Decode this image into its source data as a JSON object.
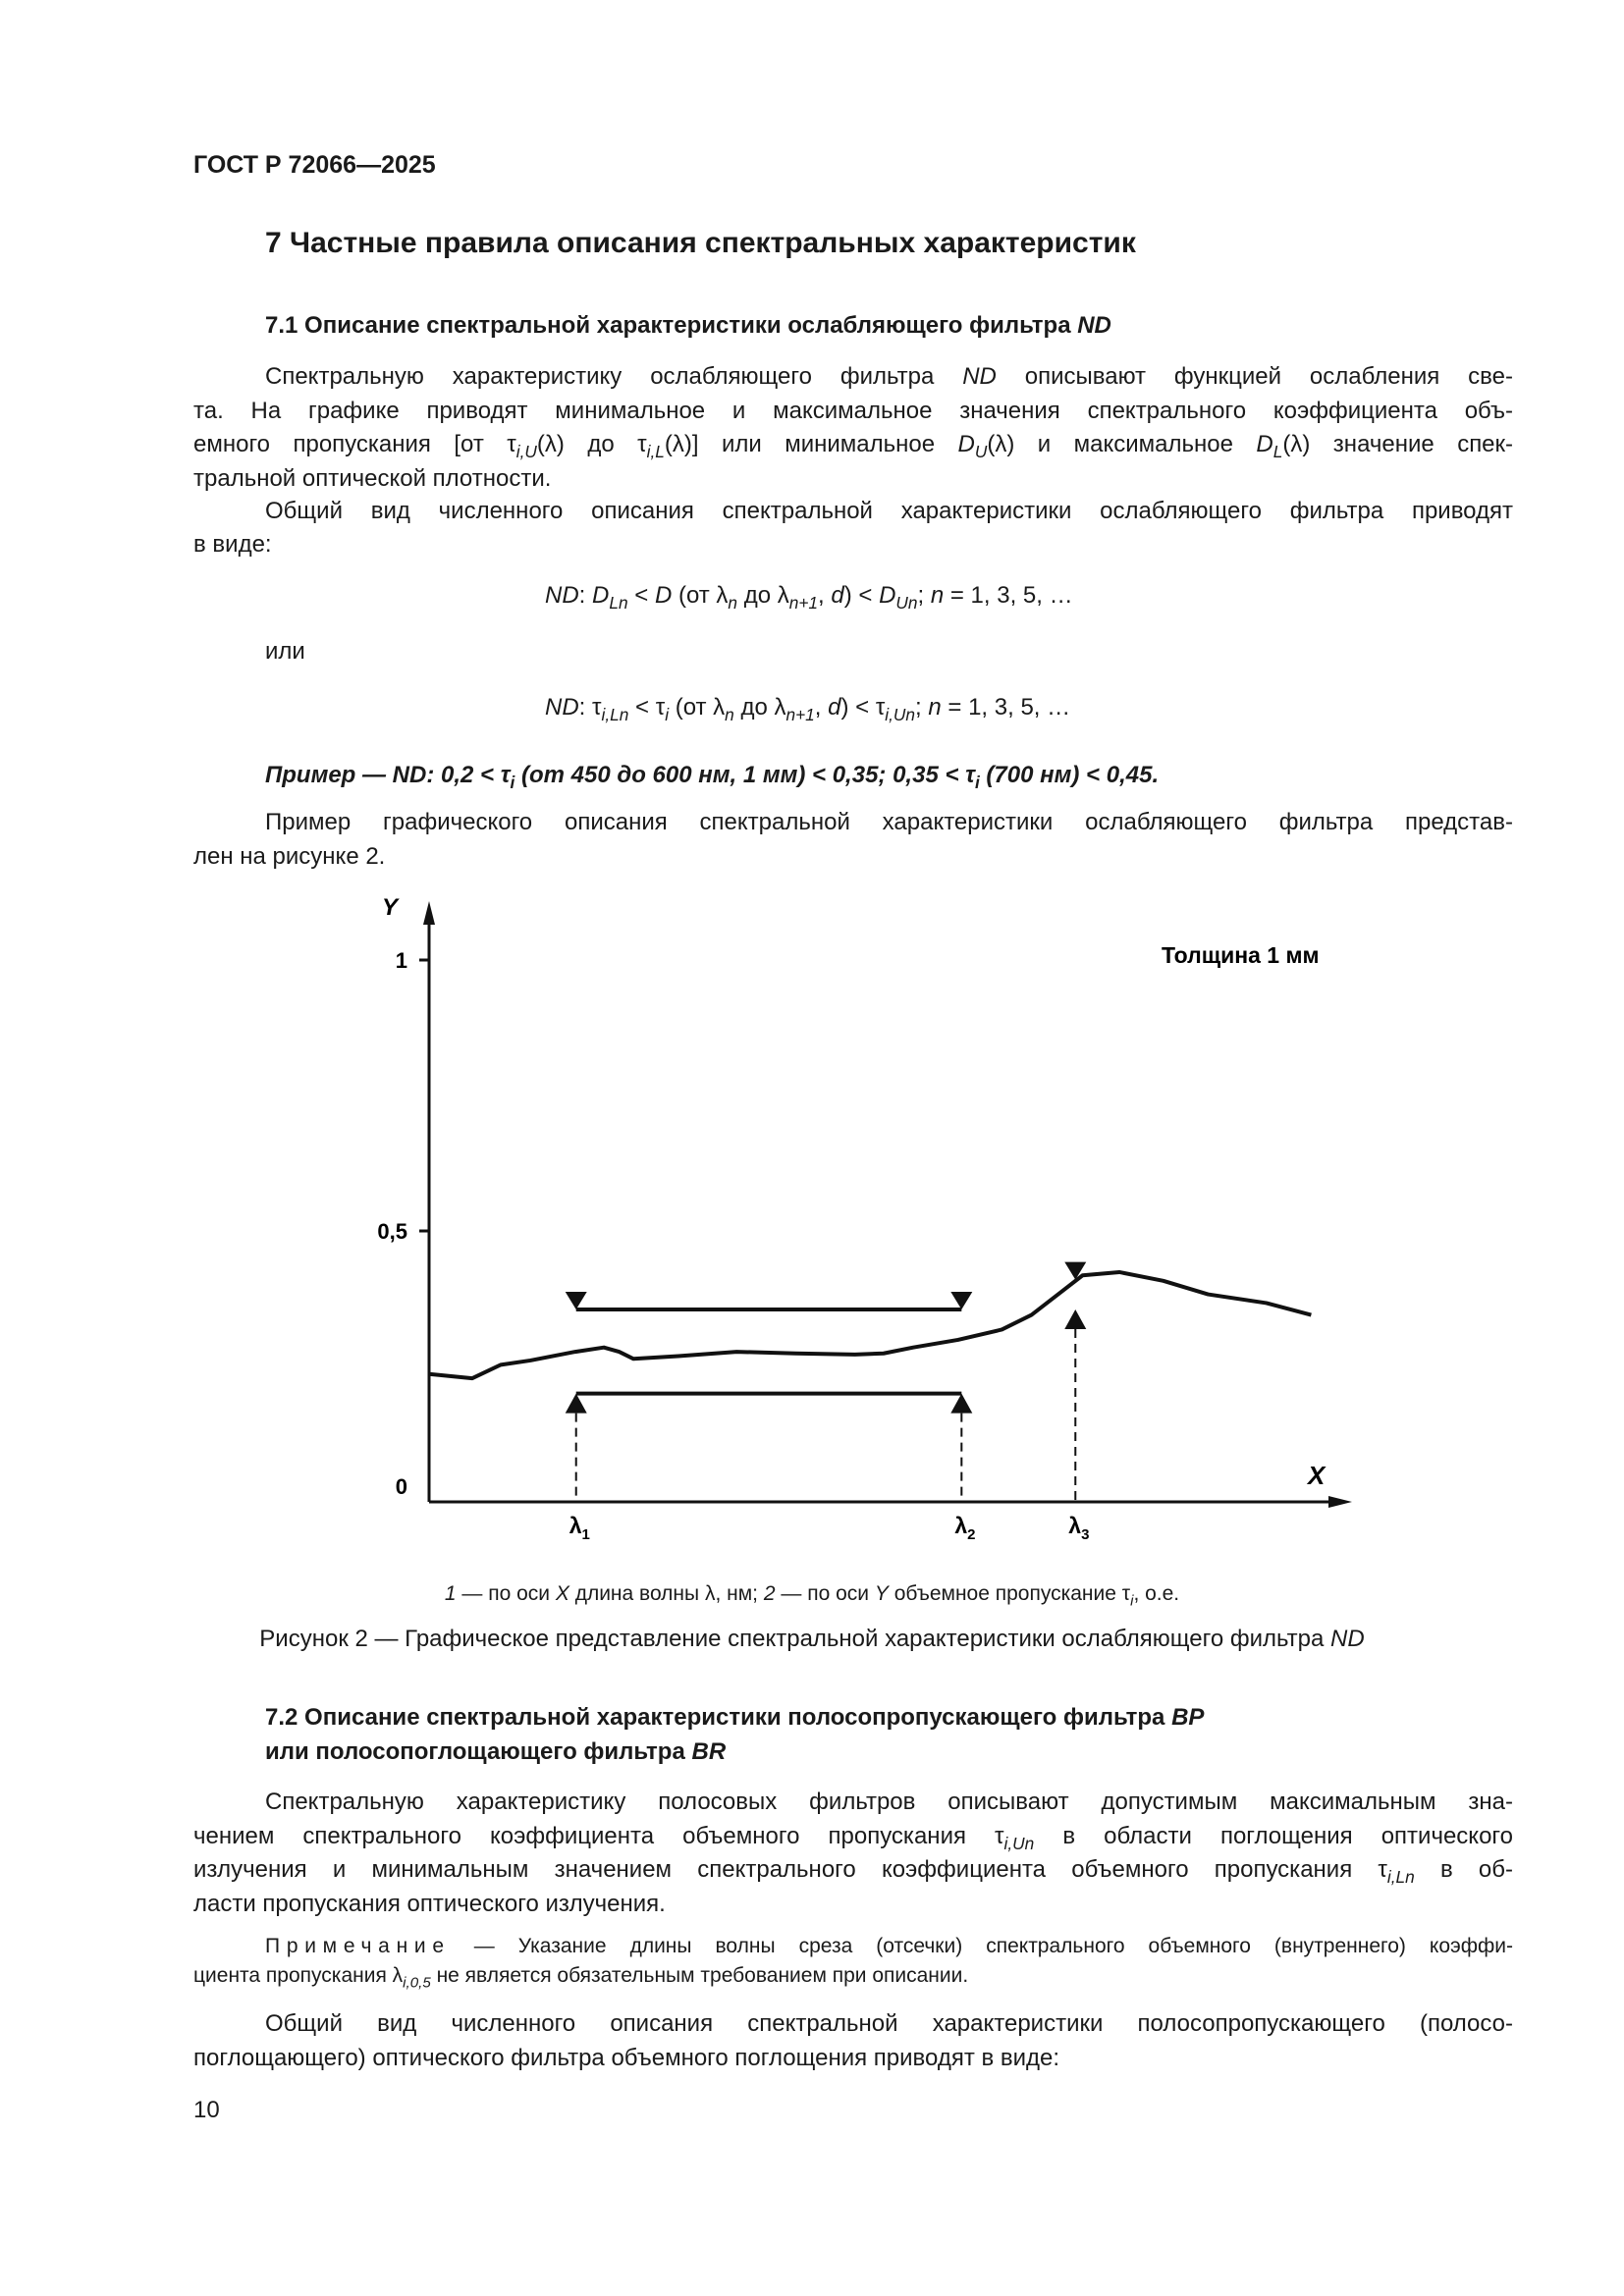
{
  "header": {
    "doc_id": "ГОСТ Р 72066—2025"
  },
  "section": {
    "title": "7 Частные правила описания спектральных характеристик"
  },
  "s71": {
    "heading": [
      [
        "7.1  Описание спектральной характеристики ослабляющего фильтра ",
        ""
      ],
      [
        "ND",
        "i"
      ]
    ],
    "p1": [
      [
        [
          "Спектральную характеристику ослабляющего фильтра ",
          ""
        ],
        [
          "ND",
          "i"
        ],
        [
          " описывают функцией ослабления све-",
          ""
        ]
      ],
      [
        [
          "та. На графике приводят минимальное и максимальное значения спектрального коэффициента объ-",
          ""
        ]
      ],
      [
        [
          "емного пропускания [от τ",
          ""
        ],
        [
          "i,U",
          "isub"
        ],
        [
          "(λ) до τ",
          ""
        ],
        [
          "i,L",
          "isub"
        ],
        [
          "(λ)] или минимальное ",
          ""
        ],
        [
          "D",
          "i"
        ],
        [
          "U",
          "isub"
        ],
        [
          "(λ) и максимальное ",
          ""
        ],
        [
          "D",
          "i"
        ],
        [
          "L",
          "isub"
        ],
        [
          "(λ) значение спек-",
          ""
        ]
      ],
      [
        [
          "тральной оптической плотности.",
          ""
        ]
      ]
    ],
    "p2": [
      [
        [
          "Общий вид численного описания спектральной характеристики ослабляющего фильтра приводят",
          ""
        ]
      ],
      [
        [
          "в виде:",
          ""
        ]
      ]
    ],
    "formula1": [
      [
        "ND",
        "i"
      ],
      [
        ": ",
        ""
      ],
      [
        "D",
        "i"
      ],
      [
        "Ln",
        "isub"
      ],
      [
        " < ",
        ""
      ],
      [
        "D",
        "i"
      ],
      [
        " (от λ",
        ""
      ],
      [
        "n",
        "isub"
      ],
      [
        " до λ",
        ""
      ],
      [
        "n+1",
        "isub"
      ],
      [
        ", ",
        ""
      ],
      [
        "d",
        "i"
      ],
      [
        ") < ",
        ""
      ],
      [
        "D",
        "i"
      ],
      [
        "Un",
        "isub"
      ],
      [
        "; ",
        ""
      ],
      [
        "n",
        "i"
      ],
      [
        " = 1, 3, 5, …",
        ""
      ]
    ],
    "or": "или",
    "formula2": [
      [
        "ND",
        "i"
      ],
      [
        ": τ",
        ""
      ],
      [
        "i,Ln",
        "isub"
      ],
      [
        " < τ",
        ""
      ],
      [
        "i",
        "isub"
      ],
      [
        " (от λ",
        ""
      ],
      [
        "n",
        "isub"
      ],
      [
        " до λ",
        ""
      ],
      [
        "n+1",
        "isub"
      ],
      [
        ", ",
        ""
      ],
      [
        "d",
        "i"
      ],
      [
        ") < τ",
        ""
      ],
      [
        "i,Un",
        "isub"
      ],
      [
        "; ",
        ""
      ],
      [
        "n",
        "i"
      ],
      [
        " = 1, 3, 5, …",
        ""
      ]
    ],
    "example": [
      [
        "Пример — ND: 0,2 < τ",
        ""
      ],
      [
        "i",
        "sub"
      ],
      [
        " (от 450 до 600 нм, 1 мм) < 0,35; 0,35 < τ",
        ""
      ],
      [
        "i",
        "sub"
      ],
      [
        " (700 нм) < 0,45.",
        ""
      ]
    ],
    "p3": [
      [
        [
          "Пример графического описания спектральной характеристики ослабляющего фильтра представ-",
          ""
        ]
      ],
      [
        [
          "лен на рисунке 2.",
          ""
        ]
      ]
    ]
  },
  "chart_data": {
    "type": "line",
    "ylabel": "Y",
    "xlabel": "X",
    "ylim": [
      0,
      1.05
    ],
    "xlim": [
      0,
      100
    ],
    "yticks": [
      {
        "value": 1,
        "label": "1"
      },
      {
        "value": 0.5,
        "label": "0,5"
      },
      {
        "value": 0,
        "label": "0"
      }
    ],
    "annotation": "Толщина 1 мм",
    "curve": {
      "x": [
        0,
        4.8,
        8.0,
        11.3,
        16.3,
        19.5,
        21.2,
        22.8,
        27.8,
        34.3,
        40.9,
        47.5,
        50.7,
        54.0,
        59.0,
        63.9,
        67.2,
        70.4,
        72.9,
        77.0,
        81.9,
        86.9,
        93.4,
        98.4
      ],
      "y": [
        0.236,
        0.228,
        0.253,
        0.261,
        0.277,
        0.285,
        0.277,
        0.264,
        0.269,
        0.277,
        0.274,
        0.272,
        0.274,
        0.285,
        0.299,
        0.318,
        0.345,
        0.386,
        0.418,
        0.424,
        0.408,
        0.383,
        0.367,
        0.345
      ]
    },
    "markers": [
      {
        "label": "λ",
        "sub": "1",
        "x": 16.4
      },
      {
        "label": "λ",
        "sub": "2",
        "x": 59.4
      },
      {
        "label": "λ",
        "sub": "3",
        "x": 72.1
      }
    ],
    "band": {
      "from_marker": 0,
      "to_marker": 1,
      "upper_limit": 0.355,
      "lower_limit": 0.2
    },
    "point_limits": {
      "marker": 2,
      "upper_limit": 0.41,
      "lower_limit": 0.355
    },
    "line_color": "#111111"
  },
  "figure": {
    "key": [
      [
        "1",
        "i"
      ],
      [
        " — по оси ",
        ""
      ],
      [
        "X",
        "i"
      ],
      [
        " длина волны λ, нм; ",
        ""
      ],
      [
        "2",
        "i"
      ],
      [
        " — по оси ",
        ""
      ],
      [
        "Y",
        "i"
      ],
      [
        " объемное пропускание τ",
        ""
      ],
      [
        "i",
        "isub"
      ],
      [
        ", о.е.",
        ""
      ]
    ],
    "caption": [
      [
        "Рисунок 2 — Графическое представление спектральной характеристики ослабляющего фильтра ",
        ""
      ],
      [
        "ND",
        "i"
      ]
    ]
  },
  "s72": {
    "heading1": [
      [
        "7.2   Описание спектральной характеристики полосопропускающего фильтра ",
        ""
      ],
      [
        "BP",
        "i"
      ]
    ],
    "heading2": [
      [
        "или  полосопоглощающего фильтра ",
        ""
      ],
      [
        "BR",
        "i"
      ]
    ],
    "p1": [
      [
        [
          "Спектральную характеристику полосовых фильтров описывают допустимым максимальным зна-",
          ""
        ]
      ],
      [
        [
          "чением спектрального коэффициента объемного пропускания τ",
          ""
        ],
        [
          "i,Un",
          "isub"
        ],
        [
          " в области поглощения оптического",
          ""
        ]
      ],
      [
        [
          "излучения и минимальным значением спектрального коэффициента объемного пропускания τ",
          ""
        ],
        [
          "i,Ln",
          "isub"
        ],
        [
          " в об-",
          ""
        ]
      ],
      [
        [
          "ласти пропускания оптического излучения.",
          ""
        ]
      ]
    ],
    "note": [
      [
        [
          "Примечание",
          "sp"
        ],
        [
          " — Указание длины волны среза (отсечки) спектрального объемного (внутреннего) коэффи-",
          ""
        ]
      ],
      [
        [
          "циента пропускания λ",
          ""
        ],
        [
          "i,0,5",
          "isub"
        ],
        [
          " не является обязательным требованием при описании.",
          ""
        ]
      ]
    ],
    "p2": [
      [
        [
          "Общий вид численного описания спектральной характеристики полосопропускающего (полосо-",
          ""
        ]
      ],
      [
        [
          "поглощающего) оптического фильтра объемного поглощения приводят в виде:",
          ""
        ]
      ]
    ]
  },
  "footer": {
    "page_number": "10"
  }
}
